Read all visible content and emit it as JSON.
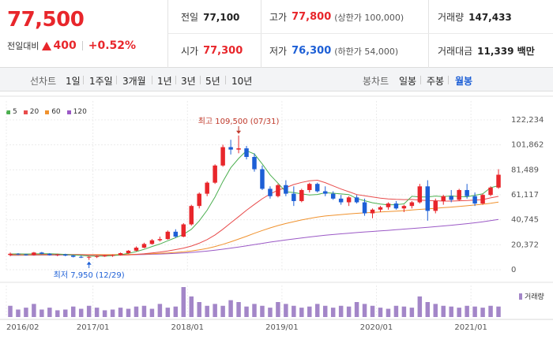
{
  "quote": {
    "price": "77,500",
    "change_label": "전일대비",
    "change": "400",
    "change_pct": "+0.52%"
  },
  "stats": {
    "prev_label": "전일",
    "prev": "77,100",
    "high_label": "고가",
    "high": "77,800",
    "upper_limit": "(상한가 100,000)",
    "volume_label": "거래량",
    "volume": "147,433",
    "open_label": "시가",
    "open": "77,300",
    "low_label": "저가",
    "low": "76,300",
    "lower_limit": "(하한가 54,000)",
    "amount_label": "거래대금",
    "amount": "11,339 백만"
  },
  "toolbar": {
    "line_label": "선차트",
    "line_items": [
      "1일",
      "1주일",
      "3개월",
      "1년",
      "3년",
      "5년",
      "10년"
    ],
    "candle_label": "봉차트",
    "candle_items": [
      "일봉",
      "주봉",
      "월봉"
    ],
    "candle_active": 2
  },
  "colors": {
    "up": "#e8262b",
    "down": "#1d5fd6",
    "ma5": "#4caf50",
    "ma20": "#e84c4c",
    "ma60": "#f0922e",
    "ma120": "#9b59c6",
    "volume": "#a386c8"
  },
  "chart_data": {
    "type": "candlestick",
    "legend": [
      {
        "name": "5",
        "color": "#4caf50"
      },
      {
        "name": "20",
        "color": "#e84c4c"
      },
      {
        "name": "60",
        "color": "#f0922e"
      },
      {
        "name": "120",
        "color": "#9b59c6"
      }
    ],
    "y_ticks": [
      "122,234",
      "101,862",
      "81,489",
      "61,117",
      "40,745",
      "20,372",
      "0"
    ],
    "y_tick_values": [
      122234,
      101862,
      81489,
      61117,
      40745,
      20372,
      0
    ],
    "ylim": [
      0,
      122234
    ],
    "x_ticks": [
      "2016/02",
      "2017/01",
      "2018/01",
      "2019/01",
      "2020/01",
      "2021/01"
    ],
    "x_tick_index": [
      0,
      11,
      23,
      35,
      47,
      59
    ],
    "annotation_high": "최고 109,500 (07/31)",
    "annotation_high_index": 29,
    "annotation_high_value": 109500,
    "annotation_low": "최저 7,950 (12/29)",
    "annotation_low_index": 10,
    "annotation_low_value": 7950,
    "volume_label": "거래량",
    "candles": [
      [
        12000,
        14000,
        11000,
        13000
      ],
      [
        13000,
        13500,
        12000,
        12500
      ],
      [
        12500,
        13000,
        11500,
        12000
      ],
      [
        12000,
        14500,
        11500,
        14000
      ],
      [
        14000,
        14500,
        12500,
        13000
      ],
      [
        13000,
        13500,
        11500,
        12000
      ],
      [
        12000,
        13000,
        11000,
        12500
      ],
      [
        12500,
        13000,
        11000,
        11500
      ],
      [
        11500,
        12000,
        10000,
        10500
      ],
      [
        10500,
        11500,
        9500,
        10000
      ],
      [
        10000,
        11000,
        7950,
        10500
      ],
      [
        10500,
        11500,
        9500,
        11000
      ],
      [
        11000,
        12000,
        10500,
        11500
      ],
      [
        11500,
        12500,
        10500,
        12000
      ],
      [
        12000,
        14000,
        11500,
        13500
      ],
      [
        13500,
        16000,
        13000,
        15500
      ],
      [
        15500,
        19000,
        15000,
        18000
      ],
      [
        18000,
        22000,
        17500,
        21000
      ],
      [
        21000,
        25000,
        20500,
        24000
      ],
      [
        24000,
        27000,
        23000,
        25000
      ],
      [
        25000,
        32000,
        24500,
        31000
      ],
      [
        31000,
        33000,
        26000,
        27000
      ],
      [
        27000,
        38000,
        26500,
        37000
      ],
      [
        37000,
        53000,
        36000,
        52000
      ],
      [
        52000,
        63000,
        50000,
        62000
      ],
      [
        62000,
        72000,
        60000,
        71000
      ],
      [
        71000,
        86000,
        70000,
        85000
      ],
      [
        85000,
        102000,
        84000,
        100000
      ],
      [
        100000,
        106000,
        94000,
        98000
      ],
      [
        98000,
        109500,
        95000,
        99000
      ],
      [
        99000,
        101000,
        90000,
        92000
      ],
      [
        92000,
        95000,
        80000,
        82000
      ],
      [
        82000,
        85000,
        65000,
        66000
      ],
      [
        66000,
        68000,
        58000,
        60000
      ],
      [
        60000,
        70000,
        59000,
        69000
      ],
      [
        69000,
        73000,
        60000,
        62000
      ],
      [
        62000,
        68000,
        52000,
        56000
      ],
      [
        56000,
        66000,
        55000,
        65000
      ],
      [
        65000,
        71000,
        63000,
        70000
      ],
      [
        70000,
        71000,
        63000,
        64000
      ],
      [
        64000,
        68000,
        60000,
        62000
      ],
      [
        62000,
        64000,
        57000,
        58000
      ],
      [
        58000,
        61000,
        53000,
        55000
      ],
      [
        55000,
        60000,
        52000,
        59000
      ],
      [
        59000,
        61000,
        54000,
        55000
      ],
      [
        55000,
        58000,
        44000,
        46000
      ],
      [
        46000,
        50000,
        42000,
        49000
      ],
      [
        49000,
        52000,
        47000,
        51000
      ],
      [
        51000,
        55000,
        49000,
        54000
      ],
      [
        54000,
        56000,
        49000,
        50000
      ],
      [
        50000,
        53000,
        47000,
        52000
      ],
      [
        52000,
        56000,
        50000,
        55000
      ],
      [
        55000,
        70000,
        54000,
        68000
      ],
      [
        68000,
        73000,
        40000,
        48000
      ],
      [
        48000,
        58000,
        46000,
        56000
      ],
      [
        56000,
        61000,
        53000,
        60000
      ],
      [
        60000,
        65000,
        55000,
        57000
      ],
      [
        57000,
        66000,
        56000,
        65000
      ],
      [
        65000,
        70000,
        58000,
        60000
      ],
      [
        60000,
        63000,
        52000,
        54000
      ],
      [
        54000,
        62000,
        53000,
        61000
      ],
      [
        61000,
        68000,
        60000,
        67000
      ],
      [
        67000,
        82000,
        66000,
        77500
      ]
    ],
    "ma5": [
      12800,
      12900,
      12800,
      12900,
      13000,
      13000,
      12800,
      12500,
      12000,
      11700,
      11200,
      11000,
      11100,
      11500,
      12200,
      13300,
      14800,
      16600,
      18900,
      21000,
      23600,
      26100,
      28800,
      33000,
      39800,
      48600,
      59400,
      71900,
      83200,
      90800,
      97100,
      94400,
      86300,
      77400,
      70600,
      63500,
      63000,
      61800,
      61000,
      61400,
      62800,
      62400,
      61800,
      61300,
      58000,
      56300,
      54600,
      53500,
      52900,
      53100,
      53700,
      59900,
      59400,
      59400,
      60100,
      59600,
      60200,
      59600,
      59500,
      60700,
      61900,
      67000,
      68500
    ],
    "ma20": [
      12500,
      12600,
      12700,
      12700,
      12700,
      12600,
      12600,
      12500,
      12400,
      12300,
      12100,
      11900,
      11800,
      11800,
      11900,
      12100,
      12500,
      13000,
      13700,
      14400,
      15300,
      16400,
      17600,
      19300,
      21600,
      24600,
      28400,
      33000,
      38200,
      43300,
      48500,
      53300,
      57900,
      61700,
      64900,
      67000,
      69500,
      71200,
      72500,
      73000,
      71000,
      68400,
      65800,
      63600,
      61300,
      60300,
      59300,
      58400,
      57800,
      57400,
      57200,
      57300,
      56800,
      56400,
      56300,
      56000,
      56000,
      56200,
      56500,
      56800,
      57200,
      58600,
      59800
    ],
    "ma60": [
      12000,
      12050,
      12100,
      12150,
      12200,
      12250,
      12300,
      12300,
      12300,
      12300,
      12300,
      12300,
      12300,
      12300,
      12350,
      12450,
      12600,
      12800,
      13000,
      13300,
      13700,
      14100,
      14600,
      15300,
      16200,
      17400,
      18900,
      20700,
      22800,
      25000,
      27300,
      29700,
      32000,
      34100,
      36000,
      37700,
      39200,
      40600,
      41800,
      42900,
      43800,
      44400,
      45000,
      45500,
      46000,
      46400,
      46700,
      47100,
      47400,
      47800,
      48200,
      48700,
      49200,
      49600,
      50100,
      50600,
      51100,
      51600,
      52200,
      52800,
      53400,
      54200,
      55200
    ],
    "ma120": [
      11800,
      11800,
      11850,
      11850,
      11900,
      11900,
      11900,
      11950,
      11950,
      12000,
      12000,
      12000,
      12050,
      12100,
      12150,
      12200,
      12300,
      12400,
      12600,
      12800,
      13000,
      13300,
      13700,
      14100,
      14600,
      15200,
      15900,
      16700,
      17600,
      18500,
      19500,
      20500,
      21500,
      22500,
      23400,
      24300,
      25100,
      25900,
      26700,
      27400,
      28100,
      28700,
      29300,
      29800,
      30300,
      30800,
      31200,
      31700,
      32100,
      32600,
      33100,
      33600,
      34100,
      34600,
      35100,
      35700,
      36300,
      36900,
      37600,
      38300,
      39100,
      40000,
      41000
    ],
    "volume": [
      30,
      20,
      25,
      35,
      20,
      25,
      18,
      20,
      28,
      22,
      30,
      25,
      18,
      20,
      25,
      22,
      28,
      30,
      22,
      35,
      25,
      28,
      80,
      55,
      40,
      30,
      35,
      30,
      45,
      40,
      28,
      35,
      30,
      25,
      40,
      35,
      30,
      25,
      28,
      35,
      30,
      25,
      30,
      28,
      40,
      35,
      30,
      25,
      22,
      30,
      28,
      25,
      55,
      40,
      35,
      30,
      28,
      25,
      30,
      28,
      25,
      30,
      28
    ]
  }
}
